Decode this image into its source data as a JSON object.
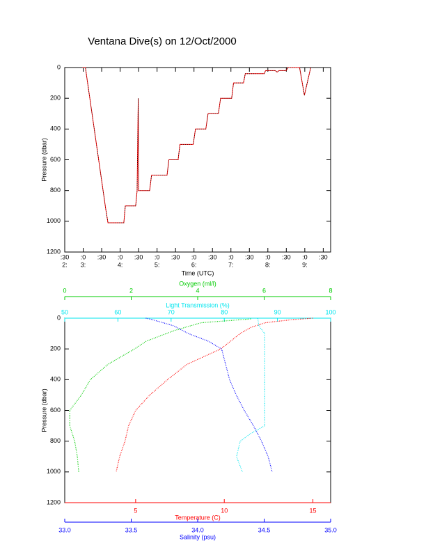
{
  "chart_data": [
    {
      "type": "line",
      "title": "Ventana Dive(s) on 12/Oct/2000",
      "xlabel": "Time (UTC)",
      "ylabel": "Pressure (dbar)",
      "x": [
        2.97,
        3.06,
        3.61,
        3.67,
        4.1,
        4.14,
        4.42,
        4.46,
        4.49,
        4.5,
        4.8,
        4.85,
        5.27,
        5.32,
        5.57,
        5.62,
        5.98,
        6.04,
        6.32,
        6.38,
        6.66,
        6.72,
        7.02,
        7.07,
        7.34,
        7.39,
        7.9,
        7.94,
        8.2,
        8.25,
        8.3,
        8.5,
        8.54,
        8.86,
        8.99,
        9.16
      ],
      "values": [
        0,
        0,
        920,
        1010,
        1010,
        900,
        900,
        800,
        200,
        800,
        800,
        700,
        700,
        600,
        600,
        500,
        500,
        400,
        400,
        300,
        300,
        200,
        200,
        100,
        100,
        40,
        40,
        20,
        20,
        30,
        20,
        20,
        0,
        0,
        180,
        0
      ],
      "color": "#ff0000",
      "xlim": [
        2.5,
        9.7
      ],
      "xticks": [
        {
          "value": 2.5,
          "label": ":30"
        },
        {
          "value": 3,
          "label": ":0"
        },
        {
          "value": 3.5,
          "label": ":30"
        },
        {
          "value": 4,
          "label": ":0"
        },
        {
          "value": 4.5,
          "label": ":30"
        },
        {
          "value": 5,
          "label": ":0"
        },
        {
          "value": 5.5,
          "label": ":30"
        },
        {
          "value": 6,
          "label": ":0"
        },
        {
          "value": 6.5,
          "label": ":30"
        },
        {
          "value": 7,
          "label": ":0"
        },
        {
          "value": 7.5,
          "label": ":30"
        },
        {
          "value": 8,
          "label": ":0"
        },
        {
          "value": 8.5,
          "label": ":30"
        },
        {
          "value": 9,
          "label": ":0"
        },
        {
          "value": 9.5,
          "label": ":30"
        }
      ],
      "xtick_hour_labels": [
        {
          "value": 2.5,
          "label": "2:"
        },
        {
          "value": 3,
          "label": "3:"
        },
        {
          "value": 4,
          "label": "4:"
        },
        {
          "value": 5,
          "label": "5:"
        },
        {
          "value": 6,
          "label": "6:"
        },
        {
          "value": 7,
          "label": "7:"
        },
        {
          "value": 8,
          "label": "8:"
        },
        {
          "value": 9,
          "label": "9:"
        }
      ],
      "ylim": [
        1200,
        0
      ],
      "yticks": [
        0,
        200,
        400,
        600,
        800,
        1000,
        1200
      ]
    },
    {
      "type": "profile",
      "ylabel": "Pressure (dbar)",
      "ylim": [
        1200,
        0
      ],
      "yticks": [
        0,
        200,
        400,
        600,
        800,
        1000,
        1200
      ],
      "x_axes": [
        {
          "label": "Oxygen (ml/l)",
          "color": "#00cc00",
          "position": "top",
          "xlim": [
            0,
            8
          ],
          "xticks": [
            0,
            2,
            4,
            6,
            8
          ]
        },
        {
          "label": "Light Transmission (%)",
          "color": "#00e5ee",
          "position": "top",
          "xlim": [
            50,
            100
          ],
          "xticks": [
            50,
            60,
            70,
            80,
            90,
            100
          ]
        },
        {
          "label": "Temperature (C)",
          "color": "#ff0000",
          "position": "bottom",
          "xlim": [
            1,
            16
          ],
          "xticks": [
            5,
            10,
            15
          ]
        },
        {
          "label": "Salinity (psu)",
          "color": "#0000ff",
          "position": "bottom",
          "xlim": [
            33,
            35
          ],
          "xticks": [
            {
              "value": 33,
              "label": "33.0"
            },
            {
              "value": 33.5,
              "label": "33.5"
            },
            {
              "value": 34,
              "label": "34.0"
            },
            {
              "value": 34.5,
              "label": "34.5"
            },
            {
              "value": 35,
              "label": "35.0"
            }
          ]
        }
      ],
      "series": [
        {
          "x_axis": 0,
          "x": [
            5.6,
            4.1,
            3.3,
            2.45,
            2.1,
            1.3,
            0.77,
            0.5,
            0.15,
            0.15,
            0.3,
            0.38,
            0.42
          ],
          "y": [
            5,
            30,
            80,
            150,
            200,
            300,
            400,
            500,
            600,
            700,
            800,
            900,
            1000
          ]
        },
        {
          "x_axis": 1,
          "x": [
            86.3,
            86.5,
            87.6,
            87.6,
            87.6,
            87.6,
            87.6,
            87.6,
            85,
            83,
            82.3,
            83.4
          ],
          "y": [
            0,
            50,
            100,
            200,
            300,
            400,
            500,
            700,
            750,
            800,
            900,
            1000
          ]
        },
        {
          "x_axis": 2,
          "x": [
            15.0,
            13.8,
            12.3,
            11.5,
            10.9,
            9.8,
            7.9,
            6.8,
            5.8,
            5.0,
            4.6,
            4.4,
            4.1,
            3.9
          ],
          "y": [
            0,
            10,
            30,
            60,
            100,
            200,
            300,
            400,
            500,
            600,
            700,
            800,
            900,
            1000
          ]
        },
        {
          "x_axis": 3,
          "x": [
            33.61,
            33.66,
            33.82,
            33.93,
            34.08,
            34.18,
            34.21,
            34.24,
            34.29,
            34.35,
            34.42,
            34.48,
            34.53,
            34.56
          ],
          "y": [
            0,
            10,
            50,
            100,
            150,
            200,
            300,
            400,
            500,
            600,
            700,
            800,
            900,
            1000
          ]
        }
      ]
    }
  ]
}
